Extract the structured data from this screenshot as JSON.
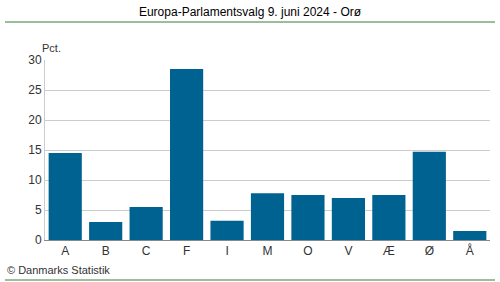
{
  "chart_data": {
    "type": "bar",
    "title": "Europa-Parlamentsvalg 9. juni 2024 - Orø",
    "ylabel": "Pct.",
    "annotations": [
      "© Danmarks Statistik"
    ],
    "categories": [
      "A",
      "B",
      "C",
      "F",
      "I",
      "M",
      "O",
      "V",
      "Æ",
      "Ø",
      "Å"
    ],
    "values": [
      14.5,
      3.0,
      5.5,
      28.5,
      3.2,
      7.8,
      7.5,
      7.0,
      7.5,
      14.7,
      1.5
    ],
    "color": "#006290",
    "ylim": [
      0,
      30
    ],
    "yticks": [
      0,
      5,
      10,
      15,
      20,
      25,
      30
    ],
    "grid": true
  }
}
